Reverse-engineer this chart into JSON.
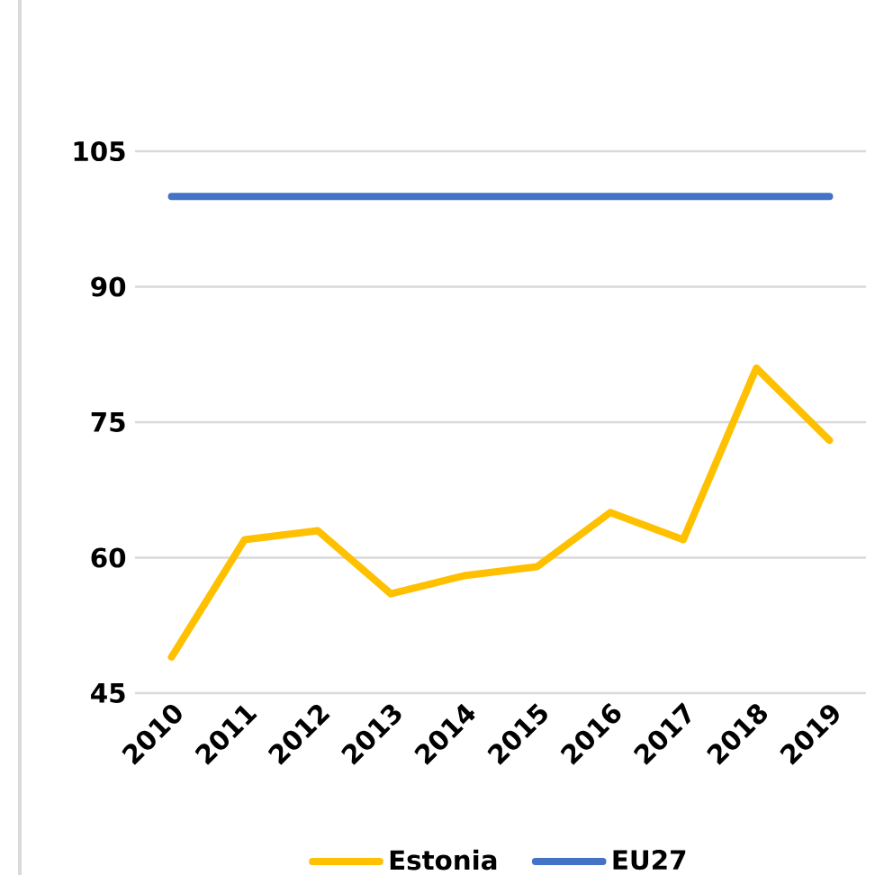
{
  "chart_data": {
    "type": "line",
    "categories": [
      "2010",
      "2011",
      "2012",
      "2013",
      "2014",
      "2015",
      "2016",
      "2017",
      "2018",
      "2019"
    ],
    "series": [
      {
        "name": "Estonia",
        "color": "#ffc000",
        "values": [
          49,
          62,
          63,
          56,
          58,
          59,
          65,
          62,
          81,
          73
        ]
      },
      {
        "name": "EU27",
        "color": "#4472c4",
        "values": [
          100,
          100,
          100,
          100,
          100,
          100,
          100,
          100,
          100,
          100
        ]
      }
    ],
    "ylim": [
      45,
      105
    ],
    "yticks": [
      45,
      60,
      75,
      90,
      105
    ],
    "grid": "y",
    "legend": "bottom",
    "marker": "none",
    "line_style": "solid"
  }
}
